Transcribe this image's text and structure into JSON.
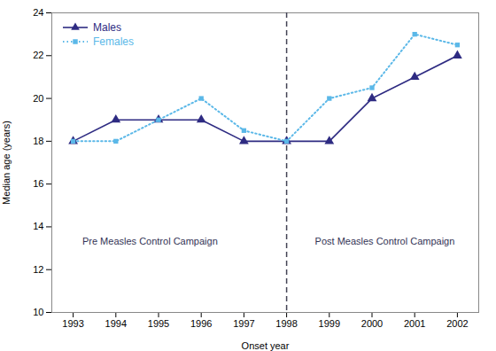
{
  "chart_data": {
    "type": "line",
    "x": [
      1993,
      1994,
      1995,
      1996,
      1997,
      1998,
      1999,
      2000,
      2001,
      2002
    ],
    "series": [
      {
        "name": "Males",
        "color": "#2E2B82",
        "marker": "triangle",
        "line_style": "solid",
        "values": [
          18,
          19,
          19,
          19,
          18,
          18,
          18,
          20,
          21,
          22
        ]
      },
      {
        "name": "Females",
        "color": "#5BB8E8",
        "marker": "square",
        "line_style": "dotted",
        "values": [
          18,
          18,
          19,
          20,
          18.5,
          18,
          20,
          20.5,
          23,
          22.5
        ]
      }
    ],
    "xlabel": "Onset year",
    "ylabel": "Median age (years)",
    "xlim": [
      1992.5,
      2002.5
    ],
    "xticks": [
      1993,
      1994,
      1995,
      1996,
      1997,
      1998,
      1999,
      2000,
      2001,
      2002
    ],
    "ylim": [
      10,
      24
    ],
    "yticks": [
      10,
      12,
      14,
      16,
      18,
      20,
      22,
      24
    ],
    "vlines": [
      {
        "x": 1998,
        "color": "#444455",
        "line_style": "dashed"
      }
    ],
    "annotations": [
      {
        "text": "Pre Measles Control Campaign",
        "x": 1994.8,
        "y": 13.3
      },
      {
        "text": "Post Measles Control Campaign",
        "x": 2000.3,
        "y": 13.3
      }
    ],
    "legend": "upper left"
  }
}
